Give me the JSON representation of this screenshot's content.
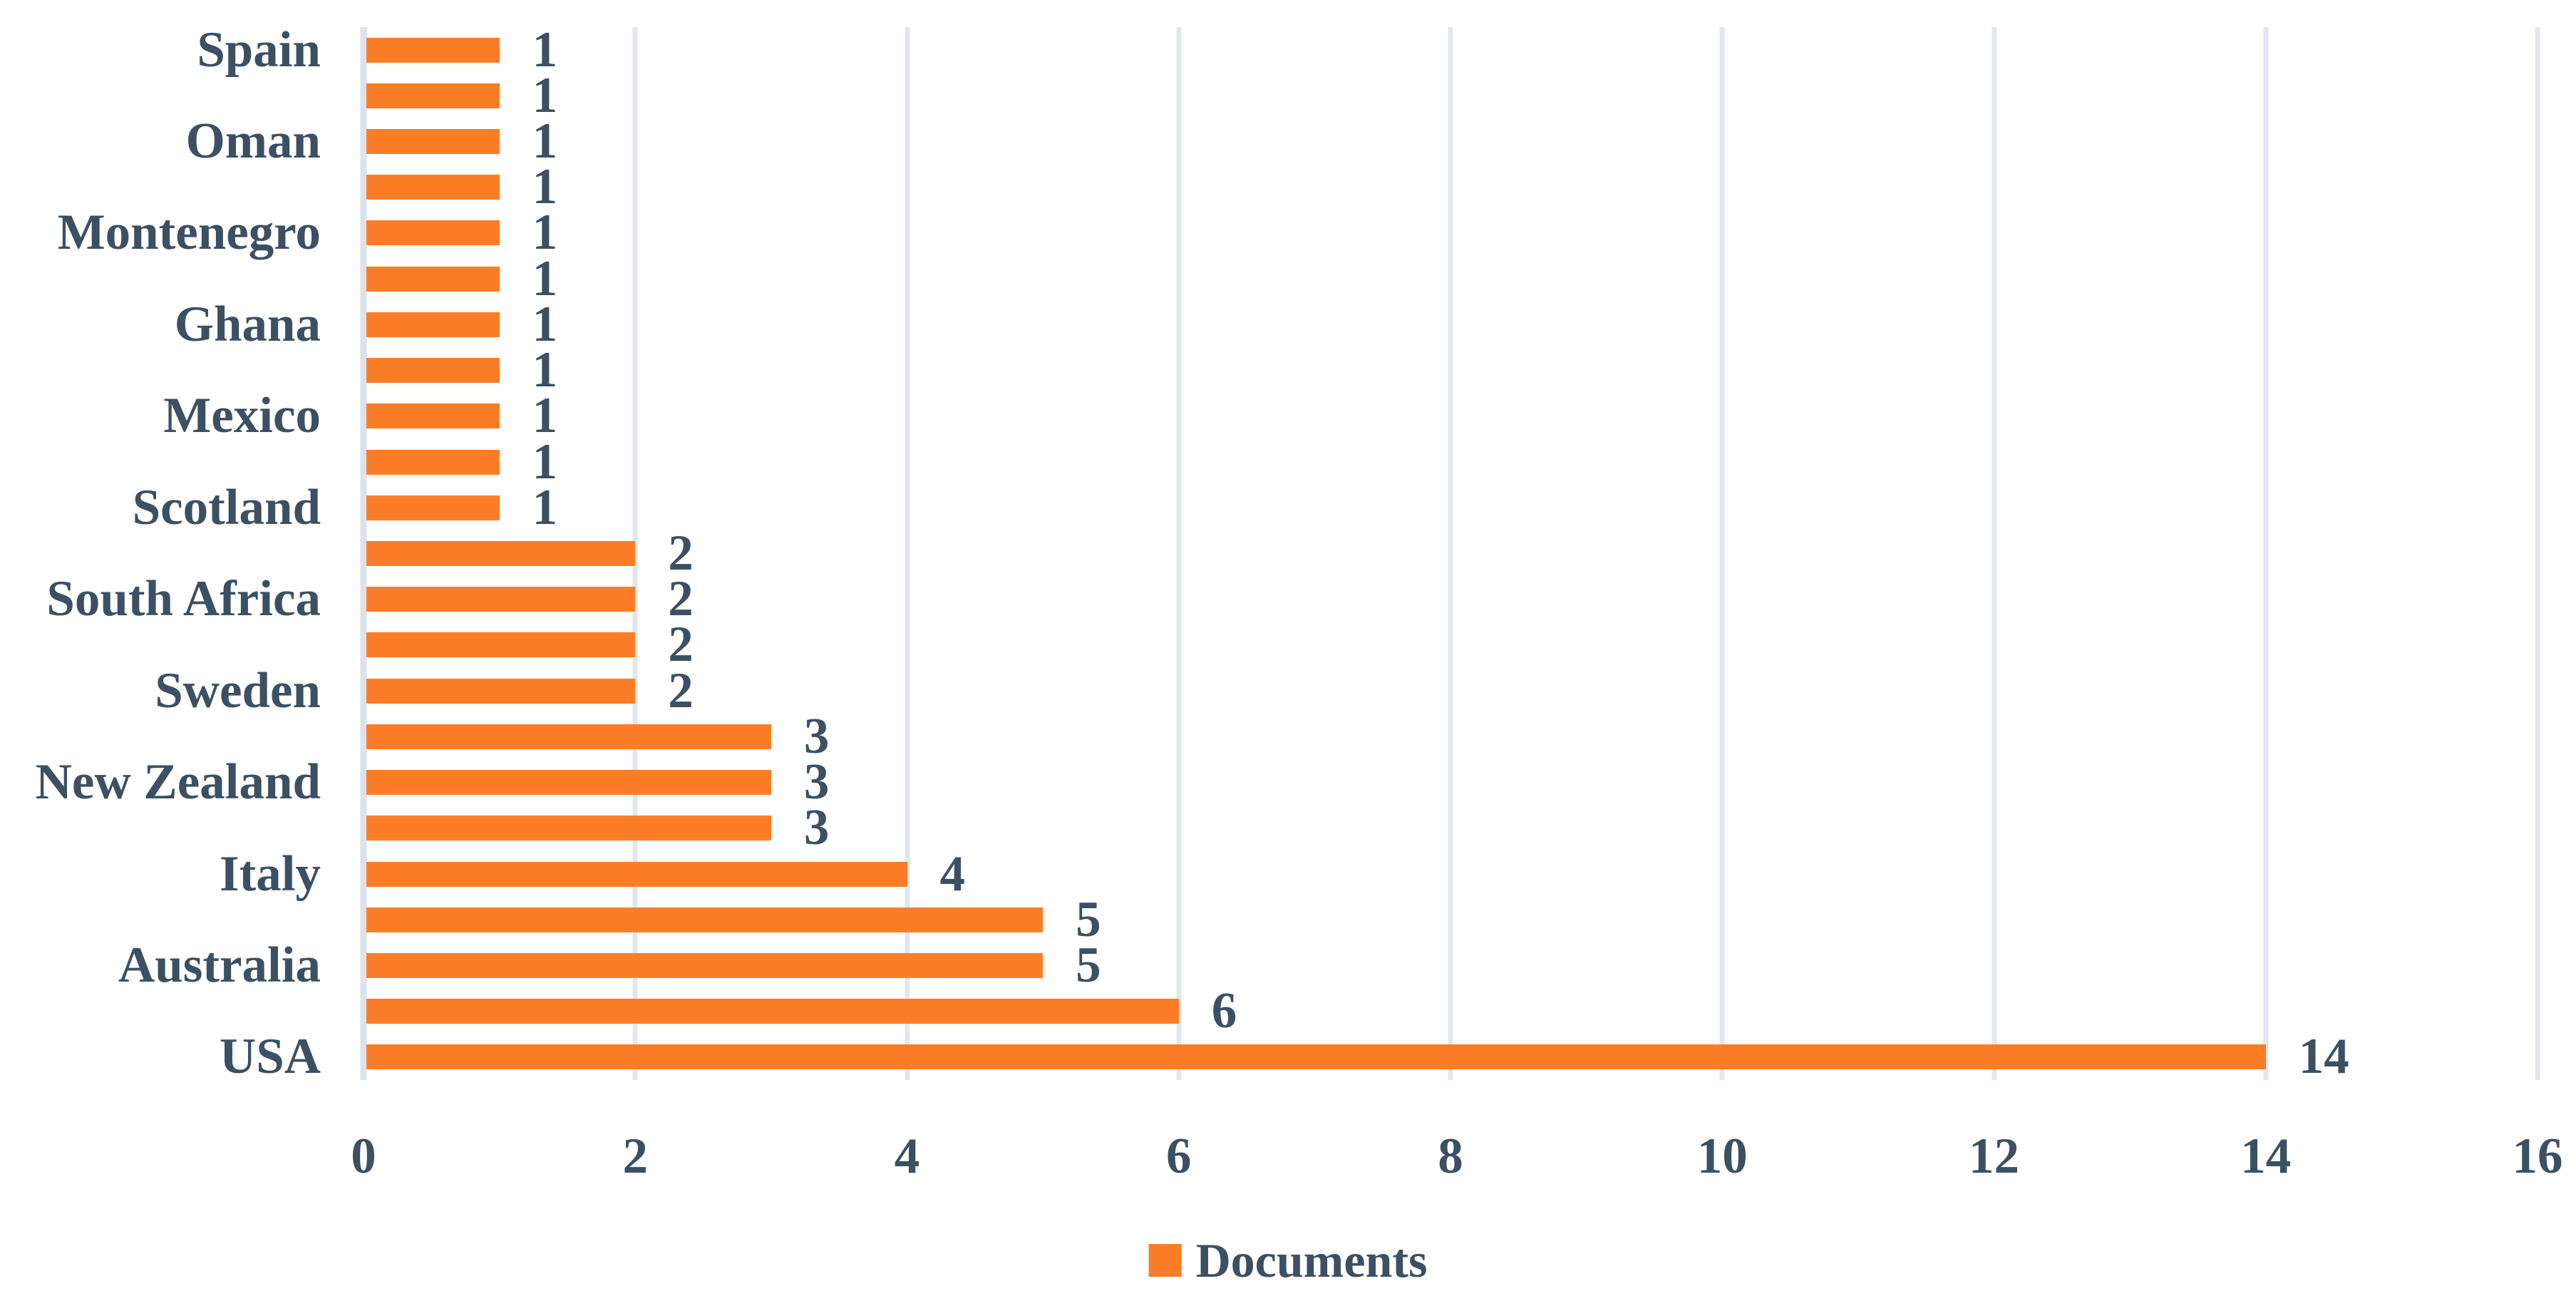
{
  "chart_data": {
    "type": "bar",
    "orientation": "horizontal",
    "title": "",
    "xlabel": "",
    "ylabel": "",
    "categories": [
      "Spain",
      "",
      "Oman",
      "",
      "Montenegro",
      "",
      "Ghana",
      "",
      "Mexico",
      "",
      "Scotland",
      "",
      "South Africa",
      "",
      "Sweden",
      "",
      "New Zealand",
      "",
      "Italy",
      "",
      "Australia",
      "",
      "USA"
    ],
    "series": [
      {
        "name": "Documents",
        "values": [
          1,
          1,
          1,
          1,
          1,
          1,
          1,
          1,
          1,
          1,
          1,
          2,
          2,
          2,
          2,
          3,
          3,
          3,
          4,
          5,
          5,
          6,
          14
        ]
      }
    ],
    "data_labels_shown": true,
    "xlim": [
      0,
      16
    ],
    "x_ticks": [
      0,
      2,
      4,
      6,
      8,
      10,
      12,
      14,
      16
    ],
    "grid": true,
    "legend_position": "bottom",
    "legend_entries": [
      "Documents"
    ],
    "colors": {
      "bar": "#FB7D27",
      "text": "#3C5064",
      "gridline": "#E1E7EF",
      "axis_line": "#DCE3EC",
      "background": "#FFFFFF"
    }
  }
}
